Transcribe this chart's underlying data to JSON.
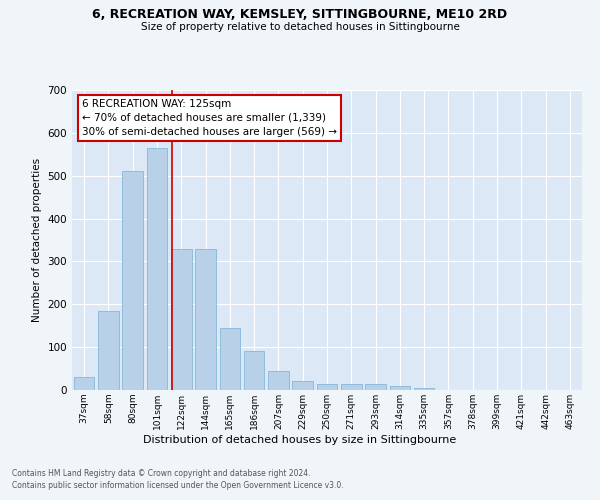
{
  "title1": "6, RECREATION WAY, KEMSLEY, SITTINGBOURNE, ME10 2RD",
  "title2": "Size of property relative to detached houses in Sittingbourne",
  "xlabel": "Distribution of detached houses by size in Sittingbourne",
  "ylabel": "Number of detached properties",
  "categories": [
    "37sqm",
    "58sqm",
    "80sqm",
    "101sqm",
    "122sqm",
    "144sqm",
    "165sqm",
    "186sqm",
    "207sqm",
    "229sqm",
    "250sqm",
    "271sqm",
    "293sqm",
    "314sqm",
    "335sqm",
    "357sqm",
    "378sqm",
    "399sqm",
    "421sqm",
    "442sqm",
    "463sqm"
  ],
  "values": [
    30,
    185,
    510,
    565,
    330,
    330,
    145,
    90,
    45,
    20,
    15,
    15,
    15,
    10,
    5,
    0,
    0,
    0,
    0,
    0,
    0
  ],
  "bar_color": "#b8d0e8",
  "bar_edgecolor": "#7aafd4",
  "plot_bg_color": "#dce8f5",
  "fig_bg_color": "#f0f5fa",
  "grid_color": "#ffffff",
  "red_line_index": 3.6,
  "annotation_text": "6 RECREATION WAY: 125sqm\n← 70% of detached houses are smaller (1,339)\n30% of semi-detached houses are larger (569) →",
  "annotation_box_facecolor": "#ffffff",
  "annotation_box_edgecolor": "#cc0000",
  "footer1": "Contains HM Land Registry data © Crown copyright and database right 2024.",
  "footer2": "Contains public sector information licensed under the Open Government Licence v3.0.",
  "ylim": [
    0,
    700
  ],
  "yticks": [
    0,
    100,
    200,
    300,
    400,
    500,
    600,
    700
  ]
}
